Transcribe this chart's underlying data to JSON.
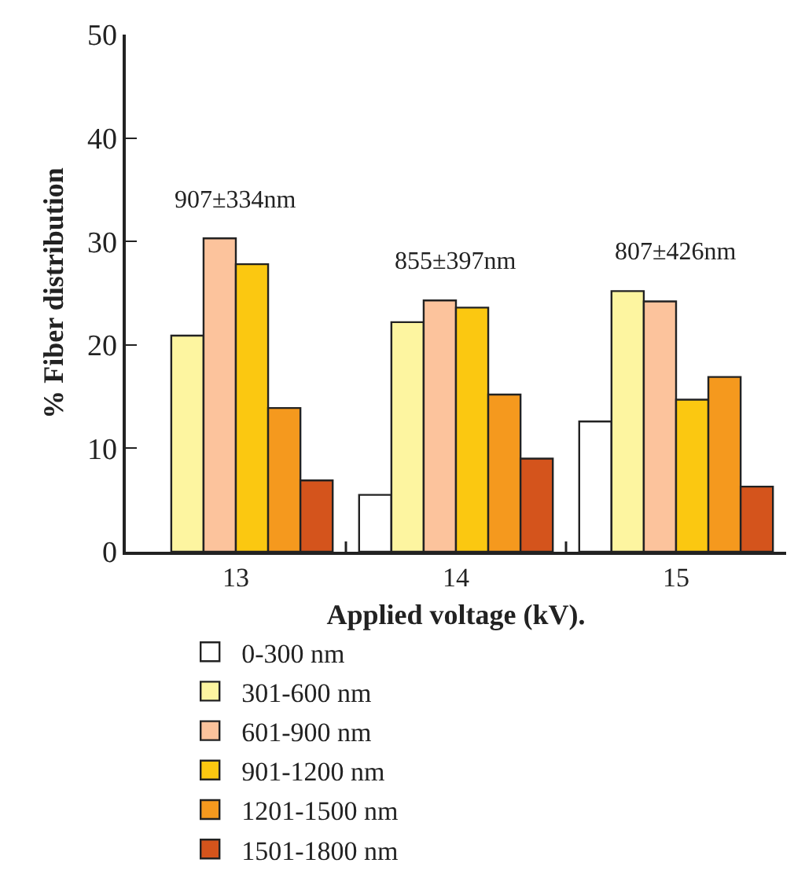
{
  "chart_data": {
    "type": "bar",
    "xlabel": "Applied voltage (kV).",
    "ylabel": "% Fiber distribution",
    "categories": [
      "13",
      "14",
      "15"
    ],
    "series": [
      {
        "name": "0-300 nm",
        "color": "#ffffff",
        "values": [
          null,
          5.5,
          12.6
        ]
      },
      {
        "name": "301-600 nm",
        "color": "#fdf5a0",
        "values": [
          20.9,
          22.2,
          25.2
        ]
      },
      {
        "name": "601-900 nm",
        "color": "#fcc39c",
        "values": [
          30.3,
          24.3,
          24.2
        ]
      },
      {
        "name": "901-1200 nm",
        "color": "#fbc811",
        "values": [
          27.8,
          23.6,
          14.7
        ]
      },
      {
        "name": "1201-1500 nm",
        "color": "#f5991e",
        "values": [
          13.9,
          15.2,
          16.9
        ]
      },
      {
        "name": "1501-1800 nm",
        "color": "#d4541c",
        "values": [
          6.9,
          9.0,
          6.3
        ]
      }
    ],
    "ylim": [
      0,
      50
    ],
    "yticks": [
      0,
      10,
      20,
      30,
      40,
      50
    ],
    "grid": false,
    "legend": "bottom",
    "annotations": [
      "907±334nm",
      "855±397nm",
      "807±426nm"
    ]
  }
}
